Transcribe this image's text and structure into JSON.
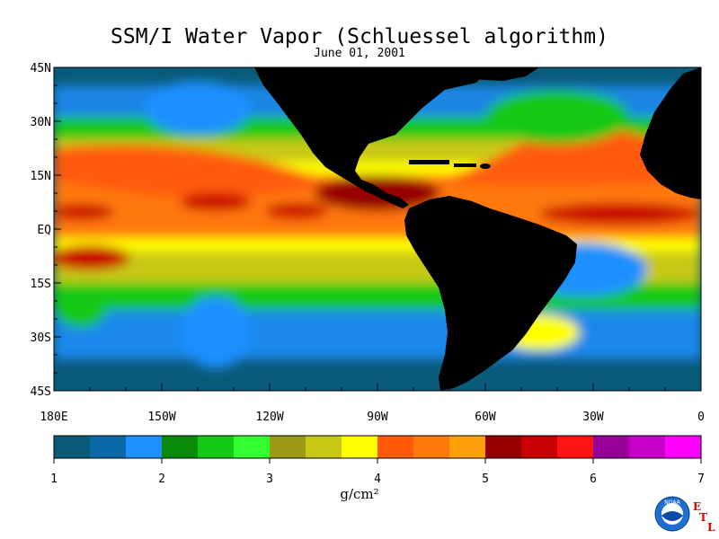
{
  "title": "SSM/I Water Vapor (Schluessel algorithm)",
  "date": "June 01, 2001",
  "lat_labels": [
    "45N",
    "30N",
    "15N",
    "EQ",
    "15S",
    "30S",
    "45S"
  ],
  "lon_labels": [
    "180E",
    "150W",
    "120W",
    "90W",
    "60W",
    "30W",
    "0"
  ],
  "colorbar": {
    "colors": [
      "#0a5a7a",
      "#0a6aa8",
      "#1e90ff",
      "#0a8a0a",
      "#14c814",
      "#32ff32",
      "#9a9a14",
      "#c8c814",
      "#ffff00",
      "#ff5a0a",
      "#ff780a",
      "#ffa00a",
      "#960000",
      "#c80000",
      "#ff1414",
      "#960096",
      "#c800c8",
      "#ff00ff"
    ],
    "tick_labels": [
      "1",
      "2",
      "3",
      "4",
      "5",
      "6",
      "7"
    ],
    "unit": "g/cm²"
  },
  "colors": {
    "land": "#000000",
    "ocean_dry": "#0a5a7a",
    "moist": "#ff780a"
  },
  "logo": {
    "text": "NOAA",
    "etl": [
      "E",
      "T",
      "L"
    ]
  }
}
